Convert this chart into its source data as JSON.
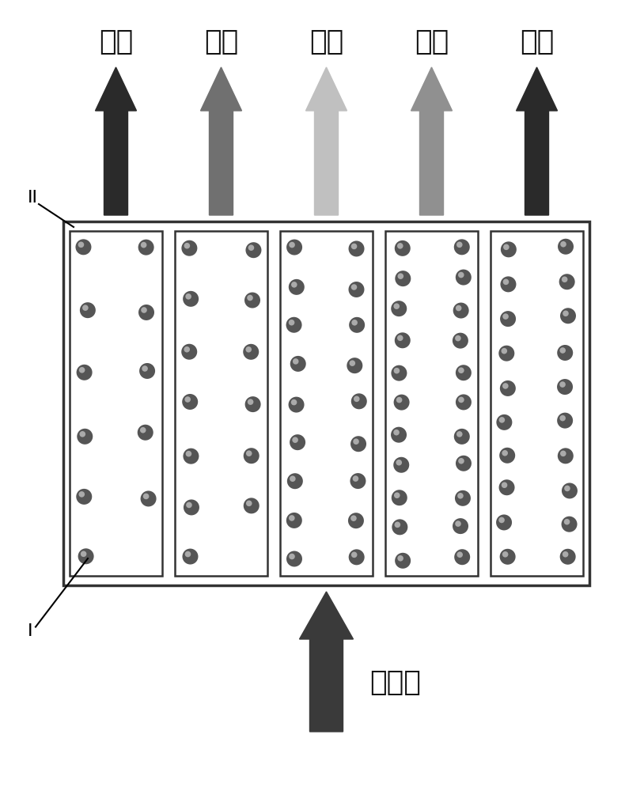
{
  "title_labels": [
    "蓝光",
    "绿光",
    "黄光",
    "橙光",
    "红光"
  ],
  "uv_label": "紫外光",
  "label_I": "I",
  "label_II": "II",
  "arrow_colors_top": [
    "#2a2a2a",
    "#707070",
    "#c0c0c0",
    "#909090",
    "#2a2a2a"
  ],
  "arrow_color_bottom": "#3a3a3a",
  "box_bg": "#ffffff",
  "box_border": "#333333",
  "dot_color": "#555555",
  "dot_highlight": "#aaaaaa",
  "dot_counts": [
    11,
    13,
    18,
    22,
    20
  ],
  "fig_bg": "#ffffff",
  "font_size_labels": 26,
  "font_size_roman": 16
}
